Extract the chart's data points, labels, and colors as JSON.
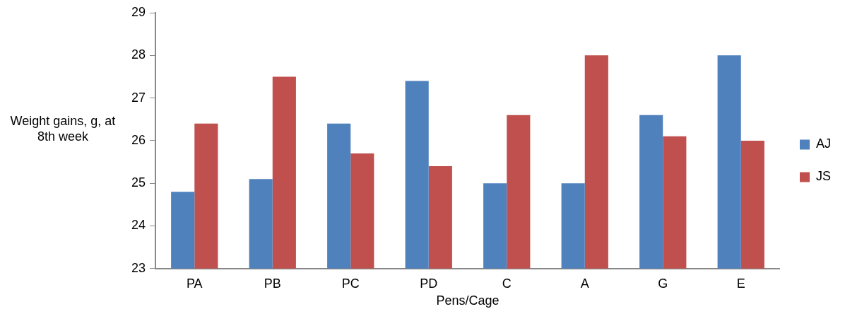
{
  "chart_data": {
    "type": "bar",
    "xlabel": "Pens/Cage",
    "ylabel": "Weight gains, g, at 8th week",
    "categories": [
      "PA",
      "PB",
      "PC",
      "PD",
      "C",
      "A",
      "G",
      "E"
    ],
    "series": [
      {
        "name": "AJ",
        "color": "#4f81bd",
        "values": [
          24.8,
          25.1,
          26.4,
          27.4,
          25,
          25,
          26.6,
          28
        ]
      },
      {
        "name": "JS",
        "color": "#c0504d",
        "values": [
          26.4,
          27.5,
          25.7,
          25.4,
          26.6,
          28,
          26.1,
          26
        ]
      }
    ],
    "ylim": [
      23,
      29
    ],
    "yticks": [
      23,
      24,
      25,
      26,
      27,
      28,
      29
    ],
    "grid": false,
    "legend": "right"
  }
}
